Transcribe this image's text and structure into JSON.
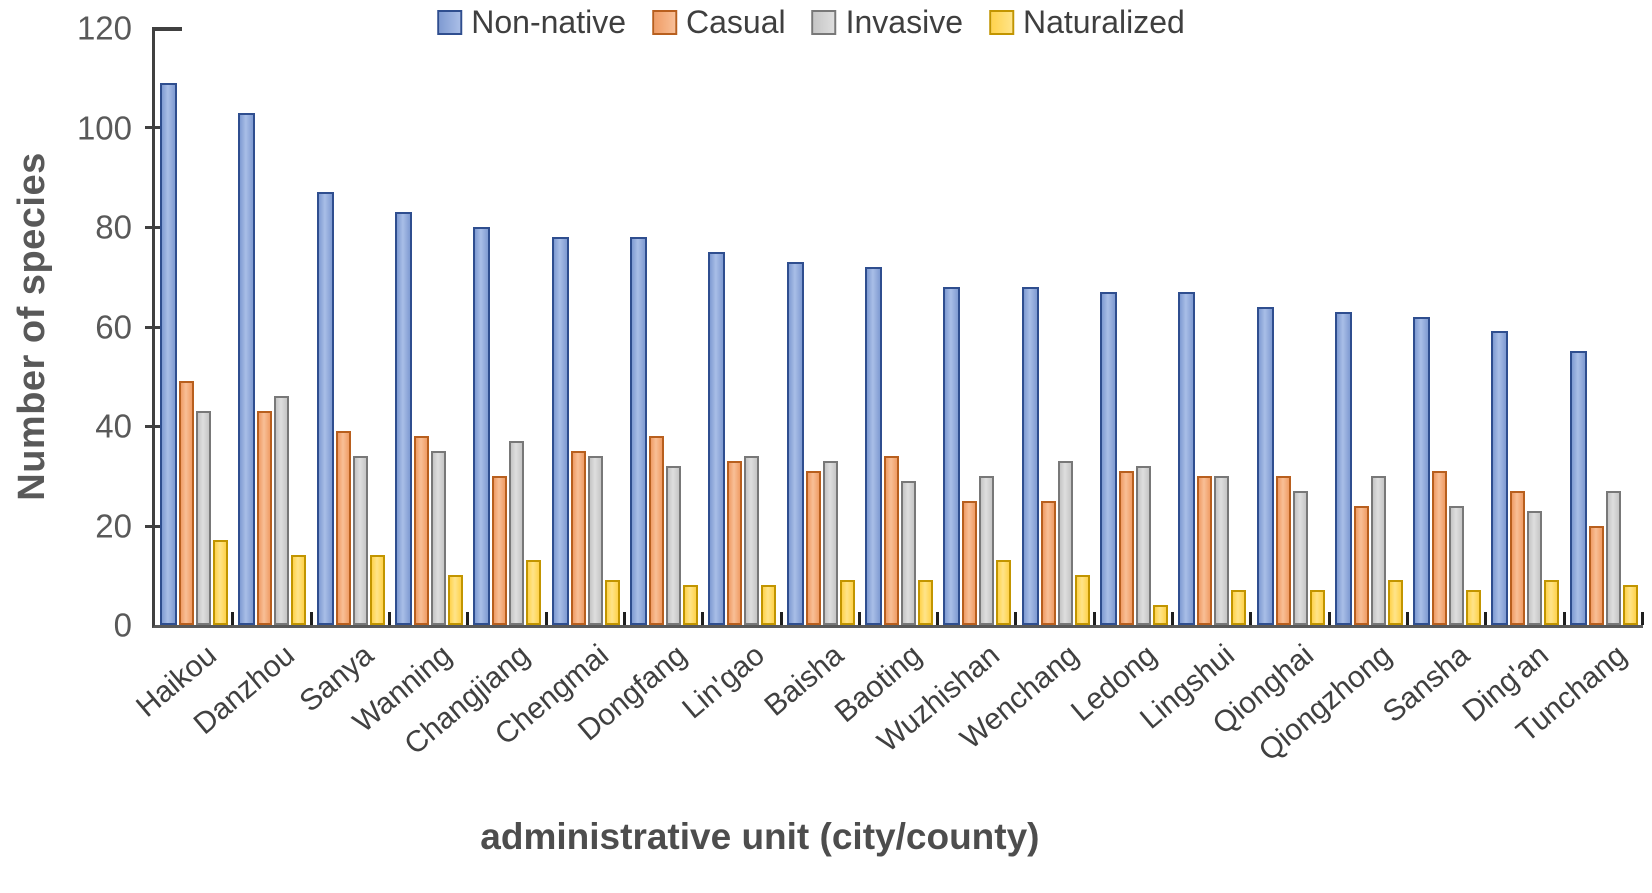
{
  "chart_data": {
    "type": "bar",
    "title": "",
    "xlabel": "administrative unit (city/county)",
    "ylabel": "Number of species",
    "ylim": [
      0,
      120
    ],
    "yticks": [
      0,
      20,
      40,
      60,
      80,
      100,
      120
    ],
    "grid": false,
    "legend_position": "top-center",
    "categories": [
      "Haikou",
      "Danzhou",
      "Sanya",
      "Wanning",
      "Changjiang",
      "Chengmai",
      "Dongfang",
      "Lin'gao",
      "Baisha",
      "Baoting",
      "Wuzhishan",
      "Wenchang",
      "Ledong",
      "Lingshui",
      "Qionghai",
      "Qiongzhong",
      "Sansha",
      "Ding'an",
      "Tunchang"
    ],
    "series": [
      {
        "name": "Non-native",
        "fill": "#7f9bd2",
        "fill_light": "#a9bee7",
        "border": "#2f4e8f",
        "values": [
          109,
          103,
          87,
          83,
          80,
          78,
          78,
          75,
          73,
          72,
          68,
          68,
          67,
          67,
          64,
          63,
          62,
          59,
          55
        ]
      },
      {
        "name": "Casual",
        "fill": "#f09d66",
        "fill_light": "#f8bf97",
        "border": "#b85f1e",
        "values": [
          49,
          43,
          39,
          38,
          30,
          35,
          38,
          33,
          31,
          34,
          25,
          25,
          31,
          30,
          30,
          24,
          31,
          27,
          20
        ]
      },
      {
        "name": "Invasive",
        "fill": "#c6c6c6",
        "fill_light": "#dedede",
        "border": "#787878",
        "values": [
          43,
          46,
          34,
          35,
          37,
          34,
          32,
          34,
          33,
          29,
          30,
          33,
          32,
          30,
          27,
          30,
          24,
          23,
          27
        ]
      },
      {
        "name": "Naturalized",
        "fill": "#ffd34d",
        "fill_light": "#ffe489",
        "border": "#c29500",
        "values": [
          17,
          14,
          14,
          10,
          13,
          9,
          8,
          8,
          9,
          9,
          13,
          10,
          4,
          7,
          7,
          9,
          7,
          9,
          8
        ]
      }
    ]
  }
}
